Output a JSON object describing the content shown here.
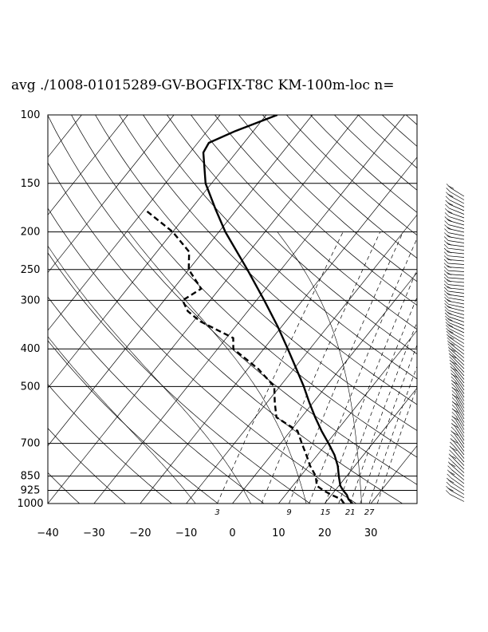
{
  "title": "avg ./1008-01015289-GV-BOGFIX-T8C KM-100m-loc n=",
  "chart_data": {
    "type": "skew-t",
    "title": "avg ./1008-01015289-GV-BOGFIX-T8C KM-100m-loc n=",
    "pressure_levels": [
      100,
      150,
      200,
      250,
      300,
      400,
      500,
      700,
      850,
      925,
      1000
    ],
    "pressure_labels": [
      "100",
      "150",
      "200",
      "250",
      "300",
      "400",
      "500",
      "700",
      "850",
      "925",
      "1000"
    ],
    "temperature_ticks": [
      -40,
      -30,
      -20,
      -10,
      0,
      10,
      20,
      30
    ],
    "temperature_labels": [
      "−40",
      "−30",
      "−20",
      "−10",
      "0",
      "10",
      "20",
      "30"
    ],
    "mixing_ratio_labels": [
      "3",
      "9",
      "15",
      "21",
      "27"
    ],
    "xlim": [
      -40,
      40
    ],
    "ylim": [
      1000,
      100
    ],
    "y_scale": "log",
    "grid": true,
    "temperature": {
      "style": "solid",
      "points": [
        {
          "p": 1000,
          "t": 26.0
        },
        {
          "p": 975,
          "t": 24.4
        },
        {
          "p": 950,
          "t": 23.3
        },
        {
          "p": 925,
          "t": 21.7
        },
        {
          "p": 900,
          "t": 20.3
        },
        {
          "p": 850,
          "t": 18.3
        },
        {
          "p": 800,
          "t": 16.3
        },
        {
          "p": 750,
          "t": 13.7
        },
        {
          "p": 700,
          "t": 10.4
        },
        {
          "p": 650,
          "t": 6.7
        },
        {
          "p": 600,
          "t": 3.0
        },
        {
          "p": 550,
          "t": -0.8
        },
        {
          "p": 500,
          "t": -4.8
        },
        {
          "p": 450,
          "t": -9.5
        },
        {
          "p": 400,
          "t": -14.8
        },
        {
          "p": 350,
          "t": -20.9
        },
        {
          "p": 300,
          "t": -28.3
        },
        {
          "p": 250,
          "t": -37.3
        },
        {
          "p": 200,
          "t": -48.6
        },
        {
          "p": 175,
          "t": -54.6
        },
        {
          "p": 150,
          "t": -61.3
        },
        {
          "p": 125,
          "t": -67.1
        },
        {
          "p": 118,
          "t": -67.6
        },
        {
          "p": 110,
          "t": -63.9
        },
        {
          "p": 100,
          "t": -57.6
        }
      ]
    },
    "dewpoint": {
      "style": "dashed",
      "points": [
        {
          "p": 1000,
          "t": 24.2
        },
        {
          "p": 975,
          "t": 22.8
        },
        {
          "p": 950,
          "t": 20.0
        },
        {
          "p": 925,
          "t": 17.4
        },
        {
          "p": 900,
          "t": 15.2
        },
        {
          "p": 850,
          "t": 13.3
        },
        {
          "p": 800,
          "t": 10.3
        },
        {
          "p": 750,
          "t": 7.6
        },
        {
          "p": 700,
          "t": 4.6
        },
        {
          "p": 650,
          "t": 1.5
        },
        {
          "p": 600,
          "t": -5.4
        },
        {
          "p": 550,
          "t": -8.3
        },
        {
          "p": 500,
          "t": -11.2
        },
        {
          "p": 450,
          "t": -17.8
        },
        {
          "p": 400,
          "t": -26.6
        },
        {
          "p": 375,
          "t": -28.5
        },
        {
          "p": 340,
          "t": -38.5
        },
        {
          "p": 320,
          "t": -43.0
        },
        {
          "p": 300,
          "t": -46.0
        },
        {
          "p": 280,
          "t": -44.0
        },
        {
          "p": 250,
          "t": -50.0
        },
        {
          "p": 225,
          "t": -53.0
        },
        {
          "p": 200,
          "t": -60.0
        },
        {
          "p": 175,
          "t": -70.0
        }
      ]
    }
  }
}
